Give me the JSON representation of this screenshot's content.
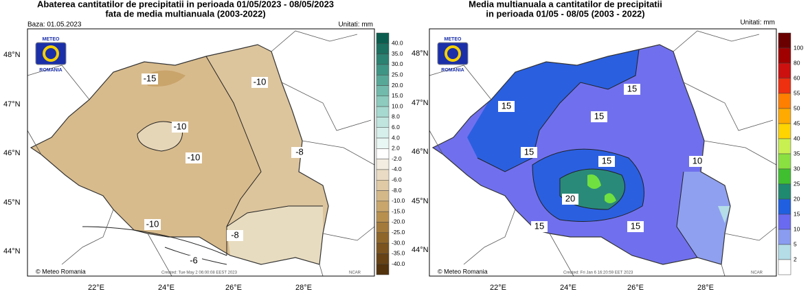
{
  "panels": [
    {
      "title": [
        "Abaterea cantitatilor de precipitatii in perioada 01/05/2023 - 08/05/2023",
        "fata de media multianuala (2003-2022)"
      ],
      "base": "Baza: 01.05.2023",
      "units": "Unitati: mm",
      "logo": [
        "METEO",
        "ROMANIA"
      ],
      "credit": "© Meteo Romania",
      "created": "Created: Tue May  2 06:00:08 EEST 2023",
      "ncar": "NCAR",
      "lat_labels": [
        "48°N",
        "47°N",
        "46°N",
        "45°N",
        "44°N"
      ],
      "lon_labels": [
        "22°E",
        "24°E",
        "26°E",
        "28°E"
      ],
      "colorbar": {
        "labels": [
          "40.0",
          "35.0",
          "30.0",
          "25.0",
          "20.0",
          "15.0",
          "10.0",
          "8.0",
          "6.0",
          "4.0",
          "2.0",
          "-2.0",
          "-4.0",
          "-6.0",
          "-8.0",
          "-10.0",
          "-15.0",
          "-20.0",
          "-25.0",
          "-30.0",
          "-35.0",
          "-40.0"
        ],
        "colors": [
          "#0b5e4f",
          "#1b7060",
          "#2b8272",
          "#3f9585",
          "#58a898",
          "#72baab",
          "#8ccbbe",
          "#a6d9cf",
          "#bfe5de",
          "#d6efea",
          "#e9f7f4",
          "#ffffff",
          "#f3ece0",
          "#eadcc4",
          "#dfcaa5",
          "#d4b888",
          "#c9a66c",
          "#b8904e",
          "#a47a3a",
          "#8f662a",
          "#7a531e",
          "#664215",
          "#52330e"
        ]
      },
      "contour_labels": [
        "-15",
        "-10",
        "-10",
        "-10",
        "-8",
        "-10",
        "-8",
        "-6"
      ]
    },
    {
      "title": [
        "Media multianuala a cantitatilor de precipitatii",
        "in perioada 01/05 - 08/05 (2003 - 2022)"
      ],
      "units": "Unitati: mm",
      "logo": [
        "METEO",
        "ROMANIA"
      ],
      "credit": "© Meteo Romania",
      "created": "Created: Fri Jan  6 16:20:59 EET 2023",
      "ncar": "NCAR",
      "lat_labels": [
        "48°N",
        "47°N",
        "46°N",
        "45°N",
        "44°N"
      ],
      "lon_labels": [
        "22°E",
        "24°E",
        "26°E",
        "28°E"
      ],
      "colorbar": {
        "labels": [
          "100",
          "80",
          "60",
          "55",
          "50",
          "45",
          "40",
          "35",
          "30",
          "25",
          "20",
          "15",
          "10",
          "5",
          "2"
        ],
        "colors": [
          "#6b0000",
          "#a00000",
          "#cc1010",
          "#ee3010",
          "#ff7f00",
          "#ffaa00",
          "#ffd400",
          "#c8f050",
          "#8ae040",
          "#40c030",
          "#208a70",
          "#2060e0",
          "#6a6af0",
          "#8a9cf0",
          "#b4dde8",
          "#ffffff"
        ]
      },
      "contour_labels": [
        "15",
        "15",
        "15",
        "15",
        "15",
        "10",
        "20",
        "15",
        "15"
      ]
    }
  ]
}
